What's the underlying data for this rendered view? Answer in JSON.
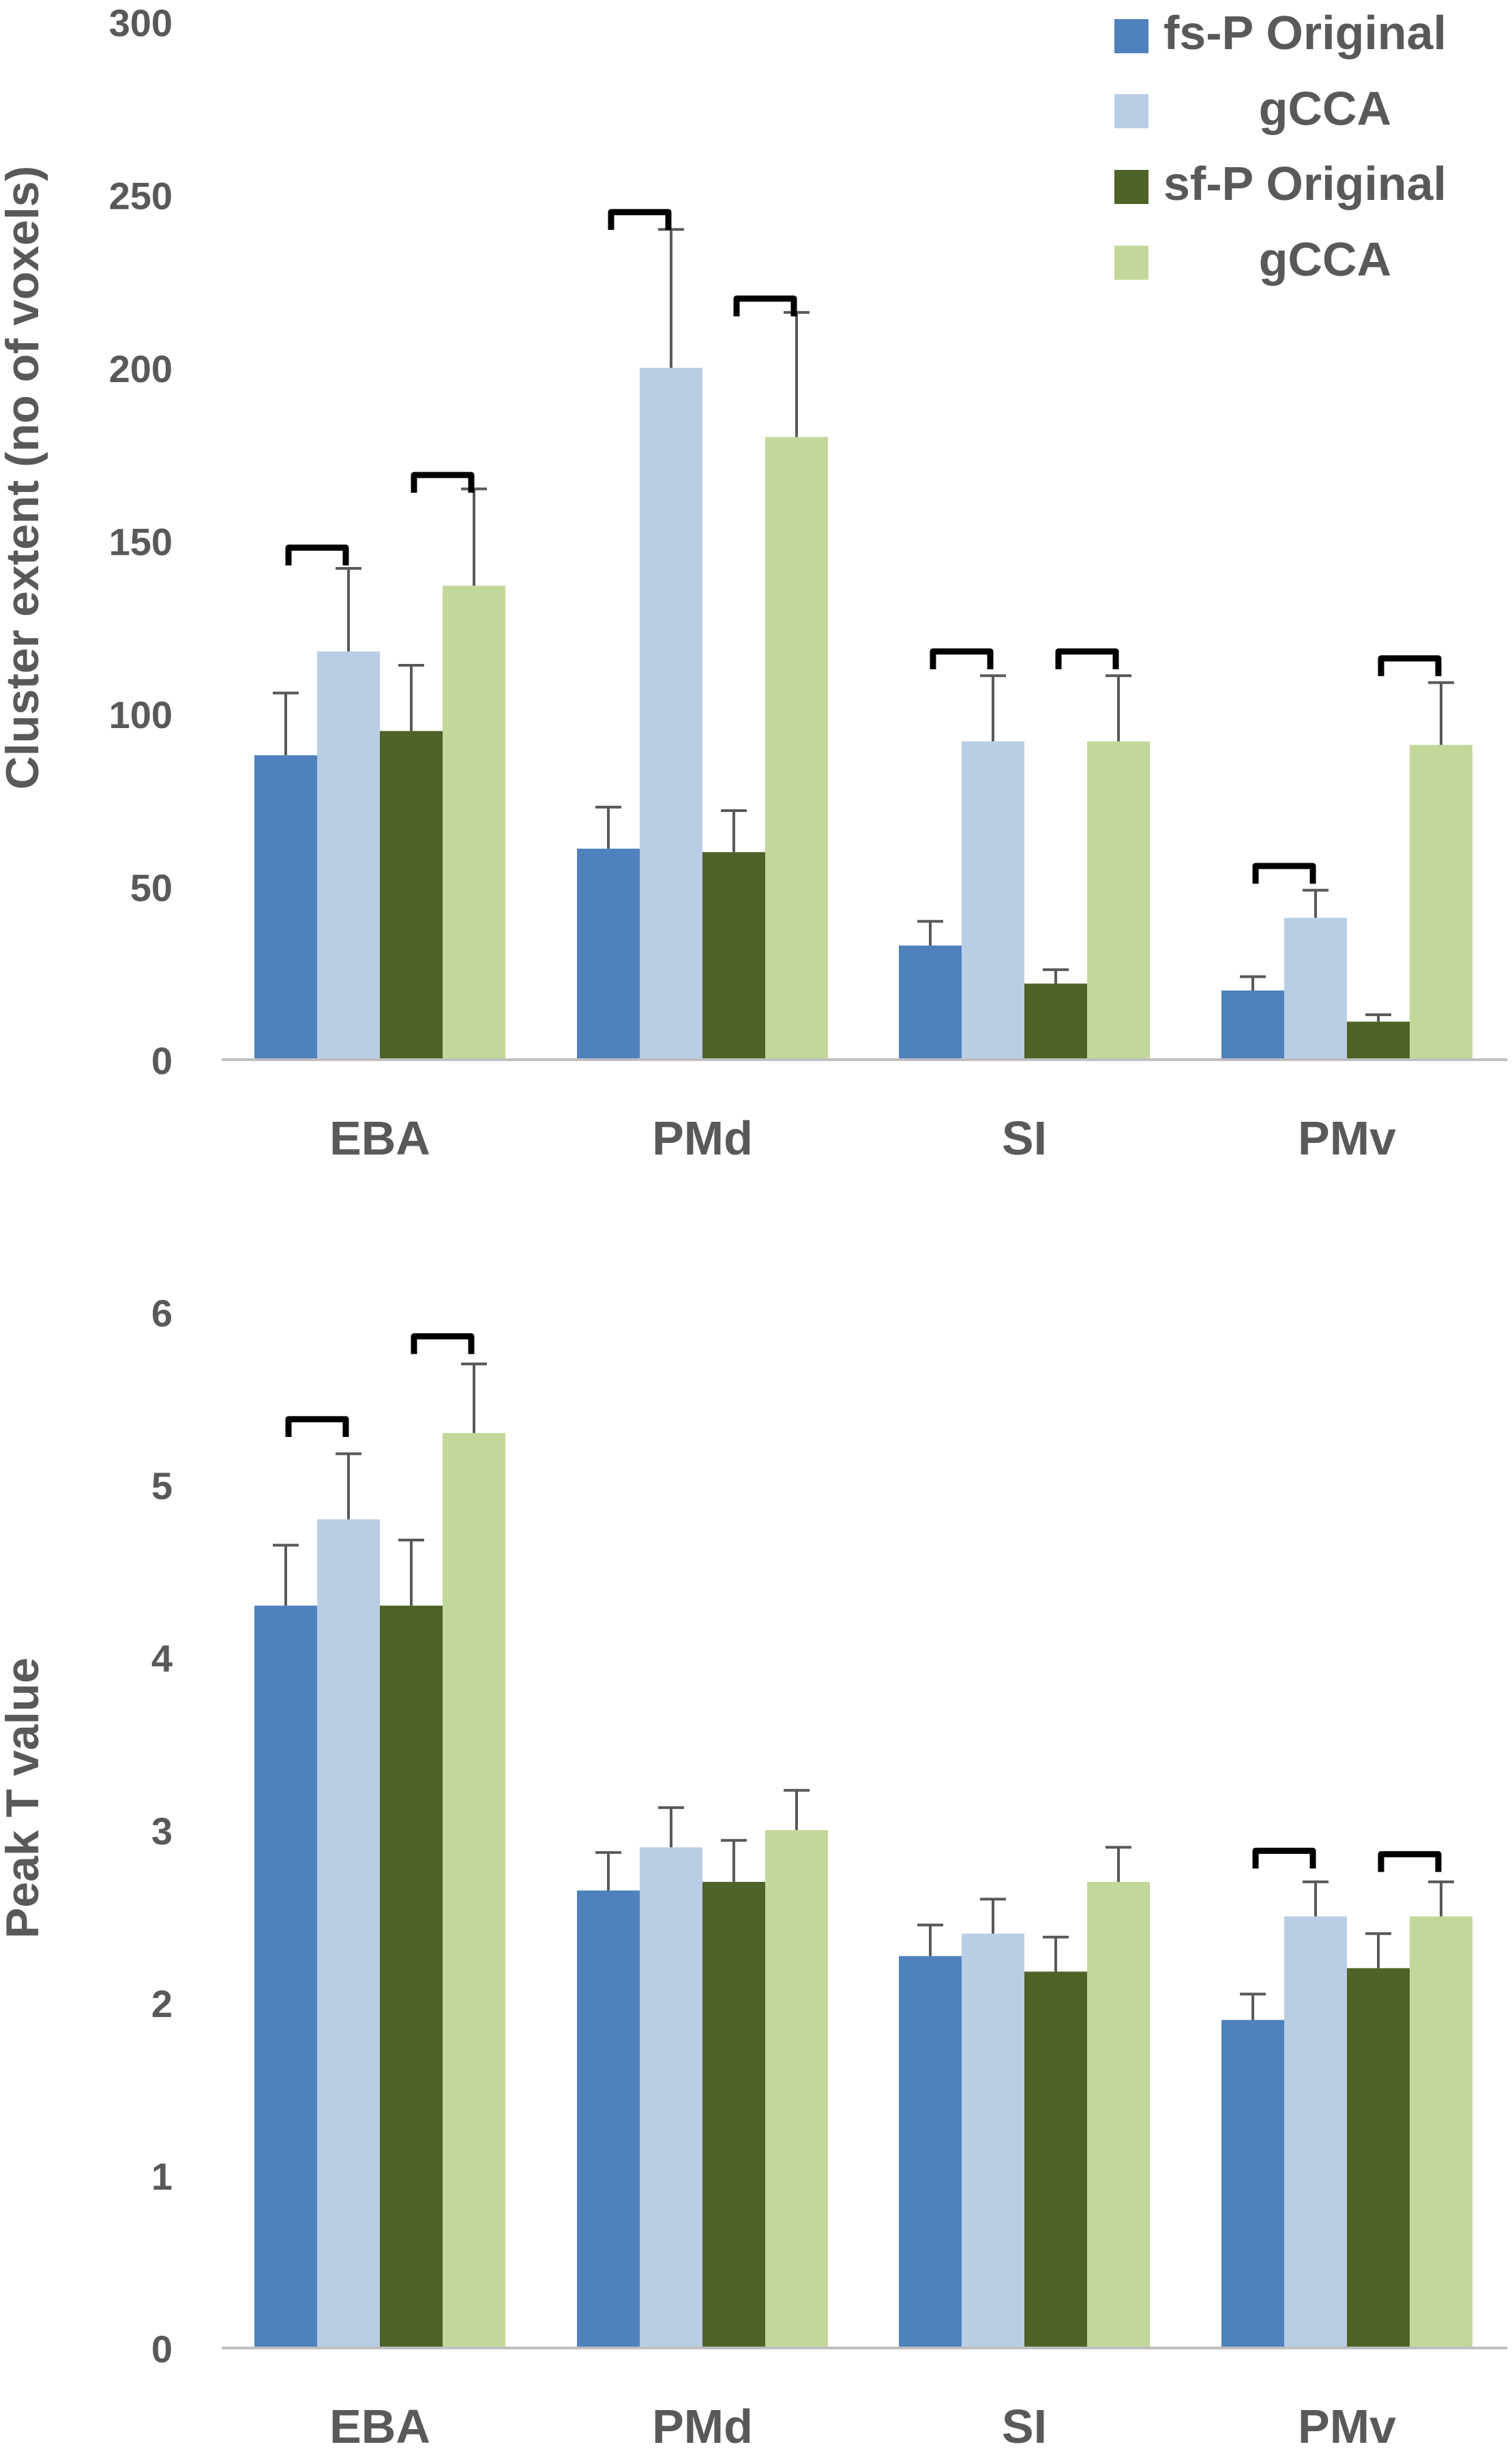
{
  "legend": {
    "items": [
      {
        "label": "fs-P Original",
        "color": "#4f81bd"
      },
      {
        "label": "gCCA",
        "color": "#b9cde5"
      },
      {
        "label": "sf-P Original",
        "color": "#4f6228"
      },
      {
        "label": "gCCA",
        "color": "#c4d79b"
      }
    ]
  },
  "chart_data": [
    {
      "type": "bar",
      "title": "",
      "ylabel": "Cluster extent (no of voxels)",
      "xlabel": "",
      "ylim": [
        0,
        300
      ],
      "yticks": [
        "0",
        "50",
        "100",
        "150",
        "200",
        "250",
        "300"
      ],
      "categories": [
        "EBA",
        "PMd",
        "SI",
        "PMv"
      ],
      "series": [
        {
          "name": "fs-P Original",
          "color": "#4f81bd",
          "values": [
            88,
            61,
            33,
            20
          ],
          "errors": [
            18,
            12,
            7,
            4
          ]
        },
        {
          "name": "fs-P gCCA",
          "color": "#b9cde5",
          "values": [
            118,
            200,
            92,
            41
          ],
          "errors": [
            24,
            40,
            19,
            8
          ]
        },
        {
          "name": "sf-P Original",
          "color": "#4f6228",
          "values": [
            95,
            60,
            22,
            11
          ],
          "errors": [
            19,
            12,
            4,
            2
          ]
        },
        {
          "name": "sf-P gCCA",
          "color": "#c4d79b",
          "values": [
            137,
            180,
            92,
            91
          ],
          "errors": [
            28,
            36,
            19,
            18
          ]
        }
      ],
      "significance_brackets": [
        {
          "category": "EBA",
          "pair": "fs-P",
          "level": 148
        },
        {
          "category": "EBA",
          "pair": "sf-P",
          "level": 169
        },
        {
          "category": "PMd",
          "pair": "fs-P",
          "level": 245
        },
        {
          "category": "PMd",
          "pair": "sf-P",
          "level": 220
        },
        {
          "category": "SI",
          "pair": "fs-P",
          "level": 118
        },
        {
          "category": "SI",
          "pair": "sf-P",
          "level": 118
        },
        {
          "category": "PMv",
          "pair": "fs-P",
          "level": 56
        },
        {
          "category": "PMv",
          "pair": "sf-P",
          "level": 116
        }
      ]
    },
    {
      "type": "bar",
      "title": "",
      "ylabel": "Peak T value",
      "xlabel": "",
      "ylim": [
        0,
        6
      ],
      "yticks": [
        "0",
        "1",
        "2",
        "3",
        "4",
        "5",
        "6"
      ],
      "categories": [
        "EBA",
        "PMd",
        "SI",
        "PMv"
      ],
      "series": [
        {
          "name": "fs-P Original",
          "color": "#4f81bd",
          "values": [
            4.3,
            2.65,
            2.27,
            1.9
          ],
          "errors": [
            0.35,
            0.22,
            0.18,
            0.15
          ]
        },
        {
          "name": "fs-P gCCA",
          "color": "#b9cde5",
          "values": [
            4.8,
            2.9,
            2.4,
            2.5
          ],
          "errors": [
            0.38,
            0.23,
            0.2,
            0.2
          ]
        },
        {
          "name": "sf-P Original",
          "color": "#4f6228",
          "values": [
            4.3,
            2.7,
            2.18,
            2.2
          ],
          "errors": [
            0.38,
            0.24,
            0.2,
            0.2
          ]
        },
        {
          "name": "sf-P gCCA",
          "color": "#c4d79b",
          "values": [
            5.3,
            3.0,
            2.7,
            2.5
          ],
          "errors": [
            0.4,
            0.23,
            0.2,
            0.2
          ]
        }
      ],
      "significance_brackets": [
        {
          "category": "EBA",
          "pair": "fs-P",
          "level": 5.38
        },
        {
          "category": "EBA",
          "pair": "sf-P",
          "level": 5.86
        },
        {
          "category": "PMv",
          "pair": "fs-P",
          "level": 2.88
        },
        {
          "category": "PMv",
          "pair": "sf-P",
          "level": 2.86
        }
      ]
    }
  ]
}
